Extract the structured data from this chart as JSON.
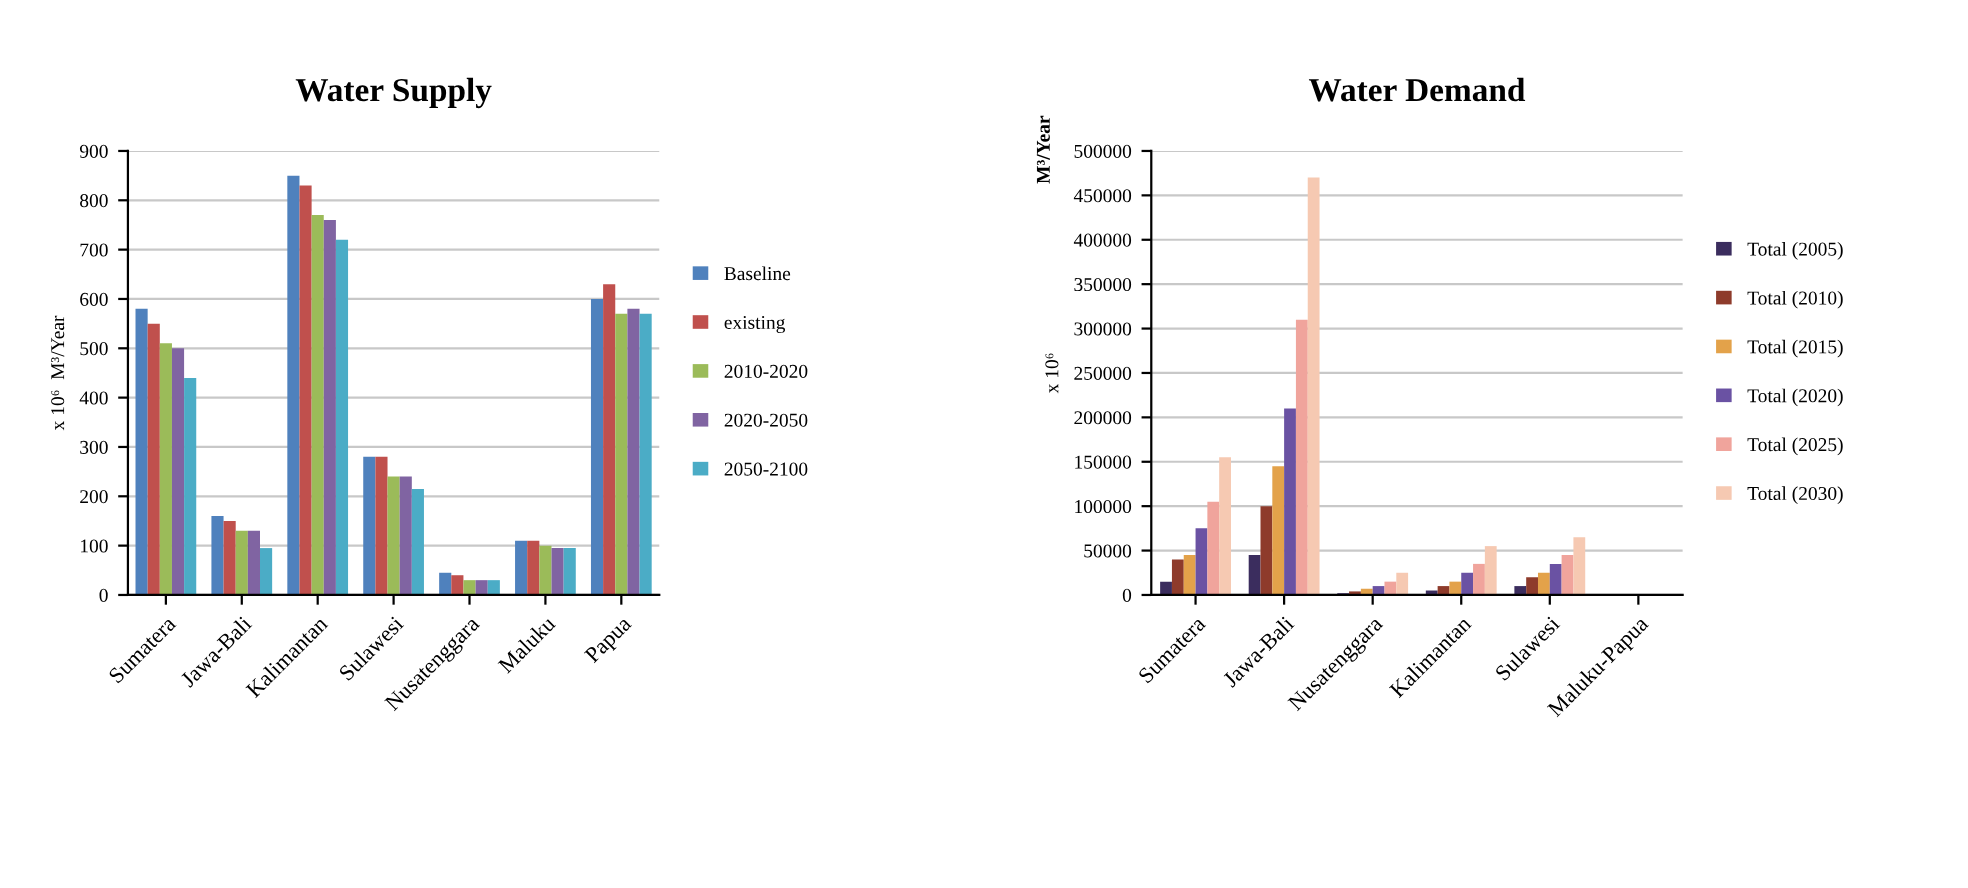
{
  "chart_data": [
    {
      "type": "bar",
      "title": "Water Supply",
      "ylabel": "x 10⁶  M³/Year",
      "categories": [
        "Sumatera",
        "Jawa-Bali",
        "Kalimantan",
        "Sulawesi",
        "Nusatenggara",
        "Maluku",
        "Papua"
      ],
      "series": [
        {
          "name": "Baseline",
          "color": "#4f81bd",
          "values": [
            580,
            160,
            850,
            280,
            45,
            110,
            600
          ]
        },
        {
          "name": "existing",
          "color": "#c0504d",
          "values": [
            550,
            150,
            830,
            280,
            40,
            110,
            630
          ]
        },
        {
          "name": "2010-2020",
          "color": "#9bbb59",
          "values": [
            510,
            130,
            770,
            240,
            30,
            100,
            570
          ]
        },
        {
          "name": "2020-2050",
          "color": "#8064a2",
          "values": [
            500,
            130,
            760,
            240,
            30,
            95,
            580
          ]
        },
        {
          "name": "2050-2100",
          "color": "#4bacc6",
          "values": [
            440,
            95,
            720,
            215,
            30,
            95,
            570
          ]
        }
      ],
      "ylim": [
        0,
        900
      ],
      "yticks": [
        0,
        100,
        200,
        300,
        400,
        500,
        600,
        700,
        800,
        900
      ],
      "grid": "y",
      "legend": "right"
    },
    {
      "type": "bar",
      "title": "Water Demand",
      "ylabel": "x 10⁶",
      "annotations": [
        "M³/Year"
      ],
      "categories": [
        "Sumatera",
        "Jawa-Bali",
        "Nusatenggara",
        "Kalimantan",
        "Sulawesi",
        "Maluku-Papua"
      ],
      "series": [
        {
          "name": "Total (2005)",
          "color": "#3b2d5e",
          "values": [
            15000,
            45000,
            2000,
            5000,
            10000,
            null
          ]
        },
        {
          "name": "Total (2010)",
          "color": "#8e3b2b",
          "values": [
            40000,
            100000,
            4000,
            10000,
            20000,
            null
          ]
        },
        {
          "name": "Total (2015)",
          "color": "#e3a24a",
          "values": [
            45000,
            145000,
            7000,
            15000,
            25000,
            null
          ]
        },
        {
          "name": "Total (2020)",
          "color": "#6a52a3",
          "values": [
            75000,
            210000,
            10000,
            25000,
            35000,
            null
          ]
        },
        {
          "name": "Total (2025)",
          "color": "#f0a49c",
          "values": [
            105000,
            310000,
            15000,
            35000,
            45000,
            null
          ]
        },
        {
          "name": "Total (2030)",
          "color": "#f6c9b2",
          "values": [
            155000,
            470000,
            25000,
            55000,
            65000,
            null
          ]
        }
      ],
      "ylim": [
        0,
        500000
      ],
      "yticks": [
        0,
        50000,
        100000,
        150000,
        200000,
        250000,
        300000,
        350000,
        400000,
        450000,
        500000
      ],
      "grid": "y",
      "legend": "right"
    }
  ]
}
